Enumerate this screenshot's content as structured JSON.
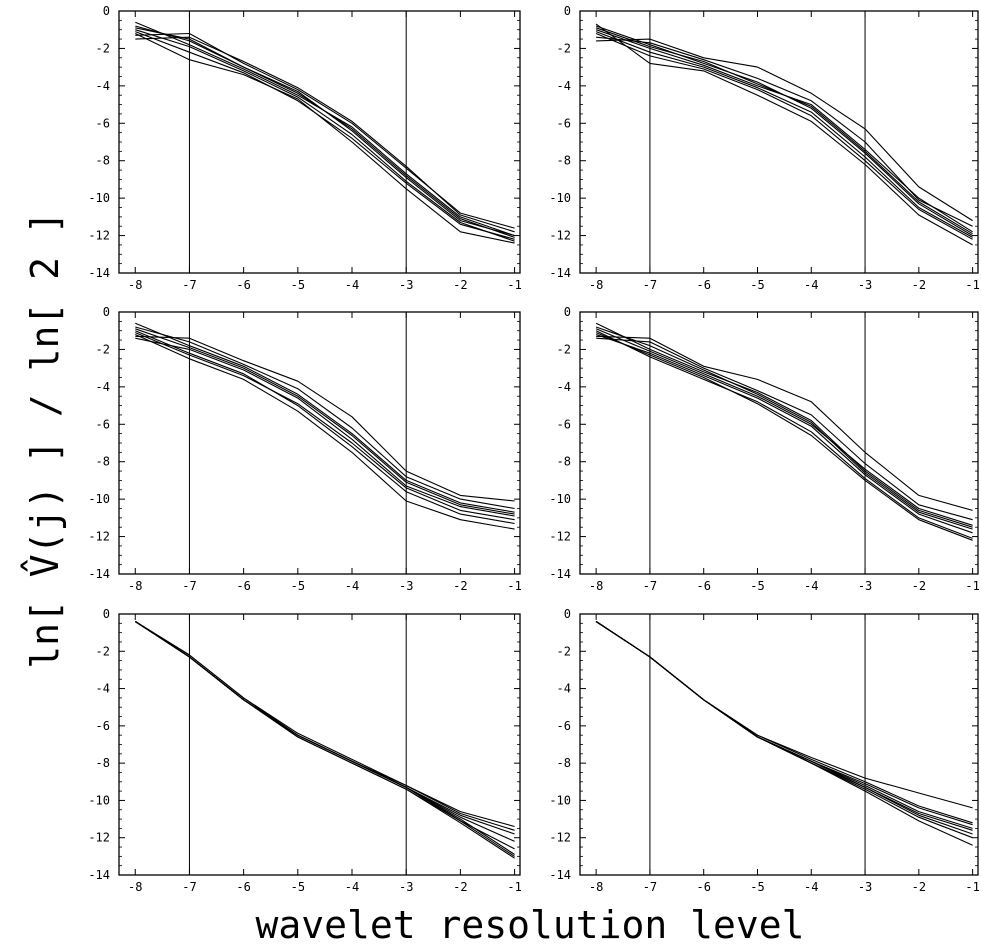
{
  "figure": {
    "xlabel": "wavelet resolution level",
    "ylabel": "ln[ V̂(j) ] / ln[ 2 ]"
  },
  "chart_data": [
    {
      "type": "line",
      "x": [
        -8,
        -7,
        -6,
        -5,
        -4,
        -3,
        -2,
        -1
      ],
      "xticks": [
        -8,
        -7,
        -6,
        -5,
        -4,
        -3,
        -2,
        -1
      ],
      "yticks": [
        0,
        -2,
        -4,
        -6,
        -8,
        -10,
        -12,
        -14
      ],
      "xlim": [
        -8.3,
        -0.9
      ],
      "ylim": [
        -14,
        0
      ],
      "vlines": [
        -7,
        -3
      ],
      "series": [
        {
          "values": [
            -0.8,
            -1.6,
            -3.0,
            -4.4,
            -6.3,
            -8.8,
            -11.1,
            -12.1
          ]
        },
        {
          "values": [
            -1.0,
            -1.9,
            -3.2,
            -4.6,
            -6.6,
            -9.1,
            -11.3,
            -12.3
          ]
        },
        {
          "values": [
            -1.3,
            -1.2,
            -2.8,
            -4.2,
            -6.0,
            -8.4,
            -10.8,
            -11.6
          ]
        },
        {
          "values": [
            -1.2,
            -2.6,
            -3.4,
            -4.7,
            -7.0,
            -9.5,
            -11.8,
            -12.4
          ]
        },
        {
          "values": [
            -0.6,
            -1.8,
            -3.1,
            -4.5,
            -6.2,
            -8.7,
            -11.0,
            -12.0
          ]
        },
        {
          "values": [
            -1.5,
            -1.4,
            -2.7,
            -4.1,
            -5.9,
            -8.3,
            -10.9,
            -11.8
          ]
        },
        {
          "values": [
            -1.1,
            -2.2,
            -3.3,
            -4.8,
            -6.8,
            -9.2,
            -11.4,
            -12.2
          ]
        },
        {
          "values": [
            -0.9,
            -1.5,
            -3.0,
            -4.3,
            -6.4,
            -8.9,
            -11.2,
            -12.0
          ]
        }
      ]
    },
    {
      "type": "line",
      "x": [
        -8,
        -7,
        -6,
        -5,
        -4,
        -3,
        -2,
        -1
      ],
      "xticks": [
        -8,
        -7,
        -6,
        -5,
        -4,
        -3,
        -2,
        -1
      ],
      "yticks": [
        0,
        -2,
        -4,
        -6,
        -8,
        -10,
        -12,
        -14
      ],
      "xlim": [
        -8.3,
        -0.9
      ],
      "ylim": [
        -14,
        0
      ],
      "vlines": [
        -7,
        -3
      ],
      "series": [
        {
          "values": [
            -0.8,
            -1.8,
            -2.8,
            -3.8,
            -5.2,
            -7.6,
            -10.3,
            -12.0
          ]
        },
        {
          "values": [
            -1.2,
            -2.4,
            -3.1,
            -4.2,
            -5.6,
            -8.0,
            -10.6,
            -12.2
          ]
        },
        {
          "values": [
            -1.6,
            -1.5,
            -2.5,
            -3.0,
            -4.4,
            -6.3,
            -9.4,
            -11.2
          ]
        },
        {
          "values": [
            -1.0,
            -2.0,
            -2.9,
            -4.0,
            -5.0,
            -7.4,
            -10.0,
            -11.8
          ]
        },
        {
          "values": [
            -0.7,
            -2.8,
            -3.2,
            -4.5,
            -5.9,
            -8.2,
            -10.9,
            -12.5
          ]
        },
        {
          "values": [
            -1.4,
            -1.7,
            -2.6,
            -3.6,
            -4.8,
            -7.0,
            -10.1,
            -11.5
          ]
        },
        {
          "values": [
            -1.1,
            -2.2,
            -3.0,
            -4.1,
            -5.4,
            -7.8,
            -10.5,
            -12.1
          ]
        },
        {
          "values": [
            -0.9,
            -1.9,
            -2.7,
            -3.9,
            -5.1,
            -7.5,
            -10.2,
            -11.9
          ]
        }
      ]
    },
    {
      "type": "line",
      "x": [
        -8,
        -7,
        -6,
        -5,
        -4,
        -3,
        -2,
        -1
      ],
      "xticks": [
        -8,
        -7,
        -6,
        -5,
        -4,
        -3,
        -2,
        -1
      ],
      "yticks": [
        0,
        -2,
        -4,
        -6,
        -8,
        -10,
        -12,
        -14
      ],
      "xlim": [
        -8.3,
        -0.9
      ],
      "ylim": [
        -14,
        0
      ],
      "vlines": [
        -7,
        -3
      ],
      "series": [
        {
          "values": [
            -0.6,
            -1.8,
            -2.9,
            -4.4,
            -6.5,
            -9.0,
            -10.2,
            -10.7
          ]
        },
        {
          "values": [
            -1.0,
            -2.2,
            -3.3,
            -5.0,
            -7.2,
            -9.6,
            -10.8,
            -11.3
          ]
        },
        {
          "values": [
            -1.3,
            -1.4,
            -2.6,
            -3.7,
            -5.6,
            -8.5,
            -9.8,
            -10.1
          ]
        },
        {
          "values": [
            -1.2,
            -2.5,
            -3.6,
            -5.3,
            -7.5,
            -10.1,
            -11.1,
            -11.6
          ]
        },
        {
          "values": [
            -0.8,
            -1.6,
            -2.8,
            -4.1,
            -6.2,
            -8.8,
            -10.0,
            -10.5
          ]
        },
        {
          "values": [
            -1.4,
            -2.0,
            -3.1,
            -4.6,
            -6.8,
            -9.3,
            -10.4,
            -10.9
          ]
        },
        {
          "values": [
            -0.9,
            -1.9,
            -3.0,
            -4.5,
            -6.6,
            -9.1,
            -10.3,
            -10.8
          ]
        },
        {
          "values": [
            -1.1,
            -2.3,
            -3.4,
            -4.9,
            -7.0,
            -9.4,
            -10.6,
            -11.1
          ]
        }
      ]
    },
    {
      "type": "line",
      "x": [
        -8,
        -7,
        -6,
        -5,
        -4,
        -3,
        -2,
        -1
      ],
      "xticks": [
        -8,
        -7,
        -6,
        -5,
        -4,
        -3,
        -2,
        -1
      ],
      "yticks": [
        0,
        -2,
        -4,
        -6,
        -8,
        -10,
        -12,
        -14
      ],
      "xlim": [
        -8.3,
        -0.9
      ],
      "ylim": [
        -14,
        0
      ],
      "vlines": [
        -7,
        -3
      ],
      "series": [
        {
          "values": [
            -0.6,
            -2.0,
            -3.2,
            -4.3,
            -5.8,
            -8.5,
            -10.6,
            -11.5
          ]
        },
        {
          "values": [
            -1.0,
            -2.4,
            -3.6,
            -4.8,
            -6.4,
            -8.9,
            -11.0,
            -12.1
          ]
        },
        {
          "values": [
            -1.3,
            -1.4,
            -2.9,
            -3.6,
            -4.8,
            -7.5,
            -9.8,
            -10.6
          ]
        },
        {
          "values": [
            -1.2,
            -2.2,
            -3.4,
            -4.6,
            -6.1,
            -8.7,
            -10.8,
            -11.8
          ]
        },
        {
          "values": [
            -0.8,
            -1.8,
            -3.1,
            -4.4,
            -5.9,
            -8.6,
            -10.7,
            -11.6
          ]
        },
        {
          "values": [
            -1.1,
            -2.3,
            -3.5,
            -4.9,
            -6.6,
            -9.0,
            -11.1,
            -12.2
          ]
        },
        {
          "values": [
            -0.9,
            -2.1,
            -3.3,
            -4.5,
            -6.0,
            -8.4,
            -10.5,
            -11.4
          ]
        },
        {
          "values": [
            -1.4,
            -1.6,
            -3.0,
            -4.2,
            -5.5,
            -8.1,
            -10.3,
            -11.1
          ]
        }
      ]
    },
    {
      "type": "line",
      "x": [
        -8,
        -7,
        -6,
        -5,
        -4,
        -3,
        -2,
        -1
      ],
      "xticks": [
        -8,
        -7,
        -6,
        -5,
        -4,
        -3,
        -2,
        -1
      ],
      "yticks": [
        0,
        -2,
        -4,
        -6,
        -8,
        -10,
        -12,
        -14
      ],
      "xlim": [
        -8.3,
        -0.9
      ],
      "ylim": [
        -14,
        0
      ],
      "vlines": [
        -7,
        -3
      ],
      "series": [
        {
          "values": [
            -0.4,
            -2.3,
            -4.6,
            -6.5,
            -7.9,
            -9.3,
            -11.1,
            -13.0
          ]
        },
        {
          "values": [
            -0.4,
            -2.3,
            -4.6,
            -6.6,
            -8.0,
            -9.4,
            -11.2,
            -13.1
          ]
        },
        {
          "values": [
            -0.4,
            -2.2,
            -4.5,
            -6.4,
            -7.8,
            -9.2,
            -10.6,
            -11.4
          ]
        },
        {
          "values": [
            -0.4,
            -2.3,
            -4.6,
            -6.5,
            -7.9,
            -9.3,
            -10.8,
            -11.8
          ]
        },
        {
          "values": [
            -0.4,
            -2.3,
            -4.6,
            -6.5,
            -7.9,
            -9.3,
            -10.9,
            -12.2
          ]
        },
        {
          "values": [
            -0.4,
            -2.3,
            -4.6,
            -6.6,
            -8.0,
            -9.4,
            -11.1,
            -12.6
          ]
        },
        {
          "values": [
            -0.4,
            -2.2,
            -4.5,
            -6.5,
            -7.9,
            -9.2,
            -10.7,
            -11.6
          ]
        },
        {
          "values": [
            -0.4,
            -2.3,
            -4.6,
            -6.5,
            -7.9,
            -9.3,
            -11.0,
            -12.9
          ]
        }
      ]
    },
    {
      "type": "line",
      "x": [
        -8,
        -7,
        -6,
        -5,
        -4,
        -3,
        -2,
        -1
      ],
      "xticks": [
        -8,
        -7,
        -6,
        -5,
        -4,
        -3,
        -2,
        -1
      ],
      "yticks": [
        0,
        -2,
        -4,
        -6,
        -8,
        -10,
        -12,
        -14
      ],
      "xlim": [
        -8.3,
        -0.9
      ],
      "ylim": [
        -14,
        0
      ],
      "vlines": [
        -7,
        -3
      ],
      "series": [
        {
          "values": [
            -0.4,
            -2.3,
            -4.6,
            -6.6,
            -7.9,
            -9.2,
            -10.6,
            -11.5
          ]
        },
        {
          "values": [
            -0.4,
            -2.3,
            -4.6,
            -6.5,
            -7.7,
            -8.8,
            -9.6,
            -10.4
          ]
        },
        {
          "values": [
            -0.4,
            -2.3,
            -4.6,
            -6.6,
            -8.0,
            -9.4,
            -10.9,
            -12.0
          ]
        },
        {
          "values": [
            -0.4,
            -2.3,
            -4.6,
            -6.6,
            -8.0,
            -9.5,
            -11.1,
            -12.4
          ]
        },
        {
          "values": [
            -0.4,
            -2.3,
            -4.6,
            -6.5,
            -7.8,
            -9.0,
            -10.3,
            -11.2
          ]
        },
        {
          "values": [
            -0.4,
            -2.3,
            -4.6,
            -6.6,
            -7.9,
            -9.3,
            -10.7,
            -11.6
          ]
        },
        {
          "values": [
            -0.4,
            -2.3,
            -4.6,
            -6.6,
            -7.9,
            -9.1,
            -10.4,
            -11.3
          ]
        },
        {
          "values": [
            -0.4,
            -2.3,
            -4.6,
            -6.6,
            -8.0,
            -9.3,
            -10.8,
            -11.8
          ]
        }
      ]
    }
  ]
}
